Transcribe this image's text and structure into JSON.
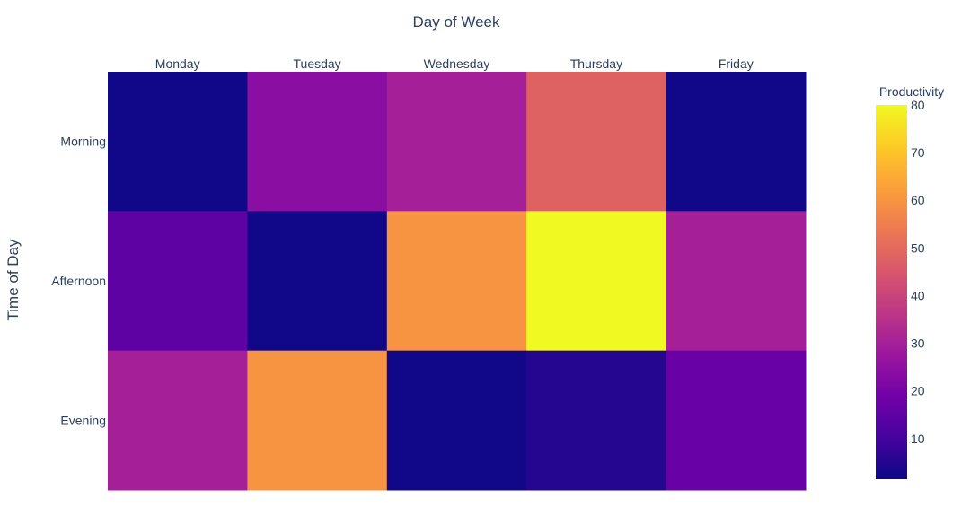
{
  "chart_data": {
    "type": "heatmap",
    "title": "",
    "xlabel": "Day of Week",
    "ylabel": "Time of Day",
    "x_categories": [
      "Monday",
      "Tuesday",
      "Wednesday",
      "Thursday",
      "Friday"
    ],
    "y_categories": [
      "Morning",
      "Afternoon",
      "Evening"
    ],
    "values": [
      [
        2,
        24,
        30,
        48,
        2
      ],
      [
        15,
        2,
        60,
        80,
        30
      ],
      [
        30,
        60,
        2,
        5,
        17
      ]
    ],
    "colorbar": {
      "title": "Productivity",
      "range": [
        1.5,
        80
      ],
      "ticks": [
        10,
        20,
        30,
        40,
        50,
        60,
        70,
        80
      ],
      "colorscale": "Plasma"
    },
    "x_axis_position": "top",
    "grid": false
  }
}
